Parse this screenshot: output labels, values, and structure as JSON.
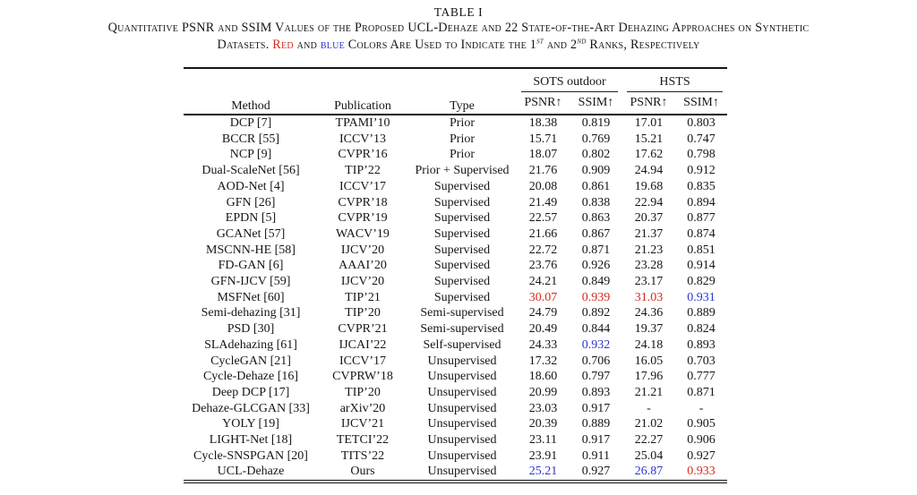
{
  "caption": {
    "label": "TABLE I",
    "line1": "Quantitative PSNR and SSIM Values of the Proposed UCL-Dehaze and 22 State-of-the-Art Dehazing Approaches on Synthetic",
    "line2_prefix": "Datasets. ",
    "red_word": "Red",
    "and1": " and ",
    "blue_word": "blue",
    "middle": " Colors Are Used to Indicate the 1",
    "sup_st": "st",
    "and2": " and 2",
    "sup_nd": "nd",
    "suffix": " Ranks, Respectively"
  },
  "table": {
    "col_method": "Method",
    "col_publication": "Publication",
    "col_type": "Type",
    "group_sots": "SOTS outdoor",
    "group_hsts": "HSTS",
    "metric_psnr": "PSNR↑",
    "metric_ssim": "SSIM↑",
    "colors": {
      "rank1": "#d42a20",
      "rank2": "#2b35d0",
      "text": "#161616"
    },
    "rows": [
      {
        "method": "DCP [7]",
        "publication": "TPAMI’10",
        "type": "Prior",
        "values": [
          "18.38",
          "0.819",
          "17.01",
          "0.803"
        ]
      },
      {
        "method": "BCCR [55]",
        "publication": "ICCV’13",
        "type": "Prior",
        "values": [
          "15.71",
          "0.769",
          "15.21",
          "0.747"
        ]
      },
      {
        "method": "NCP [9]",
        "publication": "CVPR’16",
        "type": "Prior",
        "values": [
          "18.07",
          "0.802",
          "17.62",
          "0.798"
        ]
      },
      {
        "method": "Dual-ScaleNet [56]",
        "publication": "TIP’22",
        "type": "Prior + Supervised",
        "values": [
          "21.76",
          "0.909",
          "24.94",
          "0.912"
        ]
      },
      {
        "method": "AOD-Net [4]",
        "publication": "ICCV’17",
        "type": "Supervised",
        "values": [
          "20.08",
          "0.861",
          "19.68",
          "0.835"
        ]
      },
      {
        "method": "GFN [26]",
        "publication": "CVPR’18",
        "type": "Supervised",
        "values": [
          "21.49",
          "0.838",
          "22.94",
          "0.894"
        ]
      },
      {
        "method": "EPDN [5]",
        "publication": "CVPR’19",
        "type": "Supervised",
        "values": [
          "22.57",
          "0.863",
          "20.37",
          "0.877"
        ]
      },
      {
        "method": "GCANet [57]",
        "publication": "WACV’19",
        "type": "Supervised",
        "values": [
          "21.66",
          "0.867",
          "21.37",
          "0.874"
        ]
      },
      {
        "method": "MSCNN-HE [58]",
        "publication": "IJCV’20",
        "type": "Supervised",
        "values": [
          "22.72",
          "0.871",
          "21.23",
          "0.851"
        ]
      },
      {
        "method": "FD-GAN [6]",
        "publication": "AAAI’20",
        "type": "Supervised",
        "values": [
          "23.76",
          "0.926",
          "23.28",
          "0.914"
        ]
      },
      {
        "method": "GFN-IJCV [59]",
        "publication": "IJCV’20",
        "type": "Supervised",
        "values": [
          "24.21",
          "0.849",
          "23.17",
          "0.829"
        ]
      },
      {
        "method": "MSFNet [60]",
        "publication": "TIP’21",
        "type": "Supervised",
        "values": [
          "30.07",
          "0.939",
          "31.03",
          "0.931"
        ],
        "ranks": [
          1,
          1,
          1,
          2
        ]
      },
      {
        "method": "Semi-dehazing [31]",
        "publication": "TIP’20",
        "type": "Semi-supervised",
        "values": [
          "24.79",
          "0.892",
          "24.36",
          "0.889"
        ]
      },
      {
        "method": "PSD [30]",
        "publication": "CVPR’21",
        "type": "Semi-supervised",
        "values": [
          "20.49",
          "0.844",
          "19.37",
          "0.824"
        ]
      },
      {
        "method": "SLAdehazing [61]",
        "publication": "IJCAI’22",
        "type": "Self-supervised",
        "values": [
          "24.33",
          "0.932",
          "24.18",
          "0.893"
        ],
        "ranks": [
          0,
          2,
          0,
          0
        ]
      },
      {
        "method": "CycleGAN [21]",
        "publication": "ICCV’17",
        "type": "Unsupervised",
        "values": [
          "17.32",
          "0.706",
          "16.05",
          "0.703"
        ]
      },
      {
        "method": "Cycle-Dehaze [16]",
        "publication": "CVPRW’18",
        "type": "Unsupervised",
        "values": [
          "18.60",
          "0.797",
          "17.96",
          "0.777"
        ]
      },
      {
        "method": "Deep DCP [17]",
        "publication": "TIP’20",
        "type": "Unsupervised",
        "values": [
          "20.99",
          "0.893",
          "21.21",
          "0.871"
        ]
      },
      {
        "method": "Dehaze-GLCGAN [33]",
        "publication": "arXiv’20",
        "type": "Unsupervised",
        "values": [
          "23.03",
          "0.917",
          "-",
          "-"
        ]
      },
      {
        "method": "YOLY [19]",
        "publication": "IJCV’21",
        "type": "Unsupervised",
        "values": [
          "20.39",
          "0.889",
          "21.02",
          "0.905"
        ]
      },
      {
        "method": "LIGHT-Net [18]",
        "publication": "TETCI’22",
        "type": "Unsupervised",
        "values": [
          "23.11",
          "0.917",
          "22.27",
          "0.906"
        ]
      },
      {
        "method": "Cycle-SNSPGAN [20]",
        "publication": "TITS’22",
        "type": "Unsupervised",
        "values": [
          "23.91",
          "0.911",
          "25.04",
          "0.927"
        ]
      },
      {
        "method": "UCL-Dehaze",
        "publication": "Ours",
        "type": "Unsupervised",
        "values": [
          "25.21",
          "0.927",
          "26.87",
          "0.933"
        ],
        "ranks": [
          2,
          0,
          2,
          1
        ]
      }
    ]
  }
}
